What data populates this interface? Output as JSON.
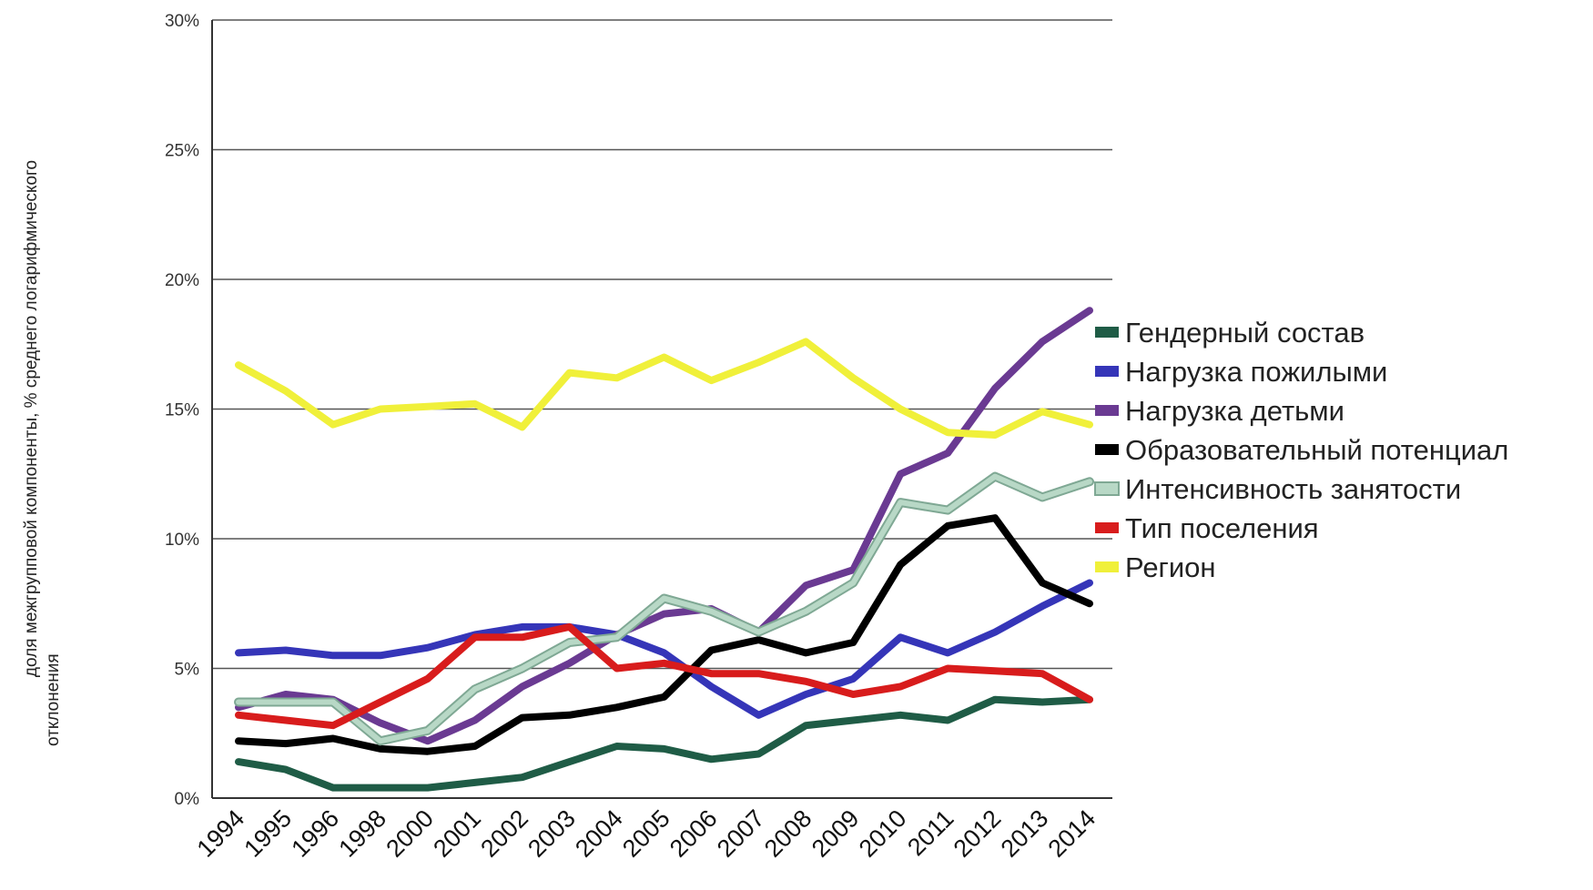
{
  "chart_data": {
    "type": "line",
    "title": "",
    "xlabel": "",
    "ylabel_lines": [
      "доля межгрупповой компоненты, % среднего логарифмического",
      "отклонения"
    ],
    "categories": [
      "1994",
      "1995",
      "1996",
      "1998",
      "2000",
      "2001",
      "2002",
      "2003",
      "2004",
      "2005",
      "2006",
      "2007",
      "2008",
      "2009",
      "2010",
      "2011",
      "2012",
      "2013",
      "2014"
    ],
    "ylim": [
      0,
      30
    ],
    "y_ticks": [
      "0%",
      "5%",
      "10%",
      "15%",
      "20%",
      "25%",
      "30%"
    ],
    "grid": true,
    "legend_position": "right",
    "series": [
      {
        "name": "Гендерный состав",
        "color": "#1f5c46",
        "values": [
          1.4,
          1.1,
          0.4,
          0.4,
          0.4,
          0.6,
          0.8,
          1.4,
          2.0,
          1.9,
          1.5,
          1.7,
          2.8,
          3.0,
          3.2,
          3.0,
          3.8,
          3.7,
          3.8
        ]
      },
      {
        "name": "Нагрузка пожилыми",
        "color": "#3535b8",
        "values": [
          5.6,
          5.7,
          5.5,
          5.5,
          5.8,
          6.3,
          6.6,
          6.6,
          6.3,
          5.6,
          4.3,
          3.2,
          4.0,
          4.6,
          6.2,
          5.6,
          6.4,
          7.4,
          8.3
        ]
      },
      {
        "name": "Нагрузка детьми",
        "color": "#6a3a92",
        "values": [
          3.5,
          4.0,
          3.8,
          2.9,
          2.2,
          3.0,
          4.3,
          5.2,
          6.3,
          7.1,
          7.3,
          6.4,
          8.2,
          8.8,
          12.5,
          13.3,
          15.8,
          17.6,
          18.8
        ]
      },
      {
        "name": "Образовательный потенциал",
        "color": "#000000",
        "values": [
          2.2,
          2.1,
          2.3,
          1.9,
          1.8,
          2.0,
          3.1,
          3.2,
          3.5,
          3.9,
          5.7,
          6.1,
          5.6,
          6.0,
          9.0,
          10.5,
          10.8,
          8.3,
          7.5
        ]
      },
      {
        "name": "Интенсивность занятости",
        "color": "#b8d8c6",
        "values": [
          3.7,
          3.7,
          3.7,
          2.2,
          2.6,
          4.2,
          5.0,
          6.0,
          6.2,
          7.7,
          7.2,
          6.4,
          7.2,
          8.3,
          11.4,
          11.1,
          12.4,
          11.6,
          12.2
        ]
      },
      {
        "name": "Тип поселения",
        "color": "#d81c1c",
        "values": [
          3.2,
          3.0,
          2.8,
          3.7,
          4.6,
          6.2,
          6.2,
          6.6,
          5.0,
          5.2,
          4.8,
          4.8,
          4.5,
          4.0,
          4.3,
          5.0,
          4.9,
          4.8,
          3.8
        ]
      },
      {
        "name": "Регион",
        "color": "#f0f03a",
        "values": [
          16.7,
          15.7,
          14.4,
          15.0,
          15.1,
          15.2,
          14.3,
          16.4,
          16.2,
          17.0,
          16.1,
          16.8,
          17.6,
          16.2,
          15.0,
          14.1,
          14.0,
          14.9,
          14.4
        ]
      }
    ]
  }
}
